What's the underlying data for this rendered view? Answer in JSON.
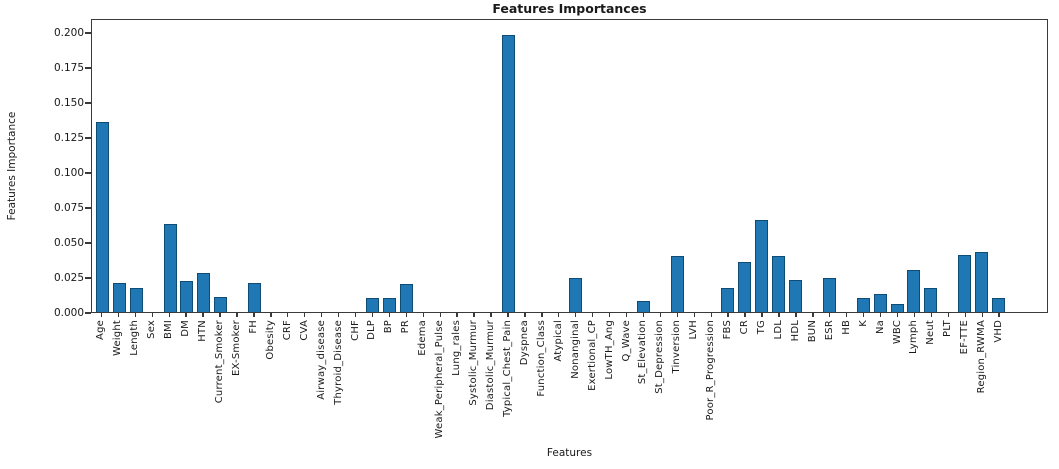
{
  "chart_data": {
    "type": "bar",
    "title": "Features Importances",
    "xlabel": "Features",
    "ylabel": "Features Importance",
    "bar_color": "#1f77b4",
    "bar_edge_color": "#0e4c75",
    "grid": false,
    "legend": "none",
    "ylim": [
      0,
      0.21
    ],
    "yticks": [
      0.0,
      0.025,
      0.05,
      0.075,
      0.1,
      0.125,
      0.15,
      0.175,
      0.2
    ],
    "ytick_labels": [
      "0.000",
      "0.025",
      "0.050",
      "0.075",
      "0.100",
      "0.125",
      "0.150",
      "0.175",
      "0.200"
    ],
    "categories": [
      "Age",
      "Weight",
      "Length",
      "Sex",
      "BMI",
      "DM",
      "HTN",
      "Current_Smoker",
      "EX-Smoker",
      "FH",
      "Obesity",
      "CRF",
      "CVA",
      "Airway_disease",
      "Thyroid_Disease",
      "CHF",
      "DLP",
      "BP",
      "PR",
      "Edema",
      "Weak_Peripheral_Pulse",
      "Lung_rales",
      "Systolic_Murmur",
      "Diastolic_Murmur",
      "Typical_Chest_Pain",
      "Dyspnea",
      "Function_Class",
      "Atypical",
      "Nonanginal",
      "Exertional_CP",
      "LowTH_Ang",
      "Q_Wave",
      "St_Elevation",
      "St_Depression",
      "Tinversion",
      "LVH",
      "Poor_R_Progression",
      "FBS",
      "CR",
      "TG",
      "LDL",
      "HDL",
      "BUN",
      "ESR",
      "HB",
      "K",
      "Na",
      "WBC",
      "Lymph",
      "Neut",
      "PLT",
      "EF-TTE",
      "Region_RWMA",
      "VHD"
    ],
    "values": [
      0.136,
      0.021,
      0.017,
      0,
      0.063,
      0.022,
      0.028,
      0.011,
      0,
      0.021,
      0,
      0,
      0,
      0,
      0,
      0,
      0.01,
      0.01,
      0.02,
      0,
      0,
      0,
      0,
      0,
      0.198,
      0,
      0,
      0,
      0.024,
      0,
      0,
      0,
      0.008,
      0,
      0.04,
      0,
      0,
      0.017,
      0.036,
      0.066,
      0.04,
      0.023,
      0,
      0.024,
      0,
      0.01,
      0.013,
      0.006,
      0.03,
      0.017,
      0,
      0.041,
      0.043,
      0.01
    ]
  }
}
